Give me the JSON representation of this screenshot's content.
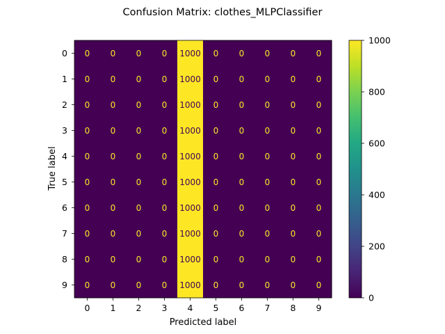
{
  "chart_data": {
    "type": "heatmap",
    "title": "Confusion Matrix: clothes_MLPClassifier",
    "xlabel": "Predicted label",
    "ylabel": "True label",
    "x_categories": [
      "0",
      "1",
      "2",
      "3",
      "4",
      "5",
      "6",
      "7",
      "8",
      "9"
    ],
    "y_categories": [
      "0",
      "1",
      "2",
      "3",
      "4",
      "5",
      "6",
      "7",
      "8",
      "9"
    ],
    "values": [
      [
        0,
        0,
        0,
        0,
        1000,
        0,
        0,
        0,
        0,
        0
      ],
      [
        0,
        0,
        0,
        0,
        1000,
        0,
        0,
        0,
        0,
        0
      ],
      [
        0,
        0,
        0,
        0,
        1000,
        0,
        0,
        0,
        0,
        0
      ],
      [
        0,
        0,
        0,
        0,
        1000,
        0,
        0,
        0,
        0,
        0
      ],
      [
        0,
        0,
        0,
        0,
        1000,
        0,
        0,
        0,
        0,
        0
      ],
      [
        0,
        0,
        0,
        0,
        1000,
        0,
        0,
        0,
        0,
        0
      ],
      [
        0,
        0,
        0,
        0,
        1000,
        0,
        0,
        0,
        0,
        0
      ],
      [
        0,
        0,
        0,
        0,
        1000,
        0,
        0,
        0,
        0,
        0
      ],
      [
        0,
        0,
        0,
        0,
        1000,
        0,
        0,
        0,
        0,
        0
      ],
      [
        0,
        0,
        0,
        0,
        1000,
        0,
        0,
        0,
        0,
        0
      ]
    ],
    "colorbar": {
      "min": 0,
      "max": 1000,
      "ticks": [
        0,
        200,
        400,
        600,
        800,
        1000
      ],
      "colormap": "viridis"
    },
    "colors": {
      "low": "#440154",
      "high": "#fde725",
      "label_on_low": "#fde725",
      "label_on_high": "#440154"
    }
  }
}
